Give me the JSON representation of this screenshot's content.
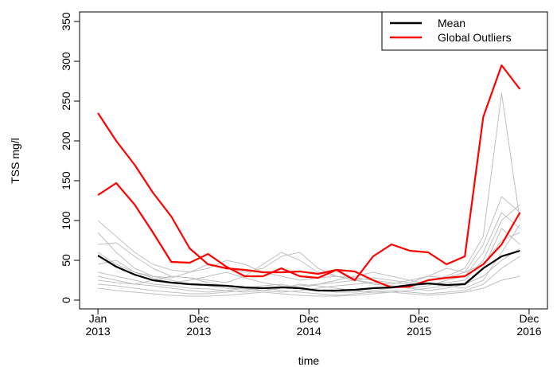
{
  "chart_data": {
    "type": "line",
    "xlabel": "time",
    "ylabel": "TSS mg/l",
    "x": [
      "2013-01",
      "2013-03",
      "2013-05",
      "2013-07",
      "2013-09",
      "2013-11",
      "2014-01",
      "2014-03",
      "2014-05",
      "2014-07",
      "2014-09",
      "2014-11",
      "2015-01",
      "2015-03",
      "2015-05",
      "2015-07",
      "2015-09",
      "2015-11",
      "2016-01",
      "2016-03",
      "2016-05",
      "2016-07",
      "2016-09",
      "2016-11"
    ],
    "xlim": [
      "2012-11",
      "2017-02"
    ],
    "xticks": [
      {
        "value": "2013-01",
        "label": "Jan\n2013"
      },
      {
        "value": "2013-12",
        "label": "Dec\n2013"
      },
      {
        "value": "2014-12",
        "label": "Dec\n2014"
      },
      {
        "value": "2015-12",
        "label": "Dec\n2015"
      },
      {
        "value": "2016-12",
        "label": "Dec\n2016"
      }
    ],
    "ylim": [
      -11,
      362
    ],
    "yticks": [
      0,
      50,
      100,
      150,
      200,
      250,
      300,
      350
    ],
    "legend": "top-right",
    "series": [
      {
        "name": "Mean",
        "color": "#000000",
        "values": [
          56,
          42,
          32,
          25,
          22,
          20,
          19,
          18,
          16,
          15,
          16,
          15,
          12,
          12,
          13,
          15,
          16,
          19,
          21,
          19,
          20,
          40,
          55,
          62
        ]
      },
      {
        "name": "Global Outliers",
        "color": "#ff0000",
        "values": [
          235,
          200,
          170,
          135,
          105,
          65,
          45,
          40,
          38,
          35,
          35,
          36,
          33,
          38,
          36,
          25,
          16,
          17,
          25,
          28,
          30,
          45,
          70,
          110
        ]
      },
      {
        "color": "#ff0000",
        "values": [
          132,
          147,
          120,
          85,
          48,
          47,
          58,
          42,
          30,
          30,
          40,
          30,
          28,
          38,
          25,
          55,
          70,
          62,
          60,
          45,
          55,
          230,
          295,
          265
        ]
      },
      {
        "color": "#c0c0c0",
        "values": [
          100,
          80,
          60,
          45,
          38,
          35,
          40,
          50,
          45,
          35,
          30,
          25,
          28,
          30,
          25,
          22,
          20,
          25,
          30,
          28,
          35,
          70,
          130,
          110
        ]
      },
      {
        "color": "#c0c0c0",
        "values": [
          70,
          72,
          55,
          40,
          30,
          28,
          25,
          22,
          30,
          45,
          60,
          50,
          35,
          30,
          28,
          25,
          22,
          20,
          25,
          30,
          40,
          80,
          260,
          100
        ]
      },
      {
        "color": "#c0c0c0",
        "values": [
          30,
          25,
          20,
          18,
          15,
          12,
          10,
          12,
          15,
          18,
          20,
          15,
          12,
          10,
          10,
          12,
          15,
          18,
          20,
          18,
          15,
          25,
          60,
          95
        ]
      },
      {
        "color": "#c0c0c0",
        "values": [
          85,
          60,
          40,
          30,
          25,
          20,
          18,
          15,
          14,
          12,
          15,
          20,
          18,
          15,
          12,
          10,
          10,
          12,
          15,
          18,
          22,
          40,
          90,
          70
        ]
      },
      {
        "color": "#c0c0c0",
        "values": [
          20,
          18,
          15,
          12,
          10,
          8,
          8,
          10,
          12,
          15,
          12,
          10,
          8,
          6,
          8,
          10,
          12,
          10,
          8,
          10,
          12,
          20,
          40,
          55
        ]
      },
      {
        "color": "#c0c0c0",
        "values": [
          45,
          50,
          35,
          28,
          22,
          25,
          30,
          35,
          28,
          22,
          18,
          15,
          20,
          25,
          30,
          35,
          30,
          25,
          20,
          22,
          25,
          50,
          100,
          120
        ]
      },
      {
        "color": "#c0c0c0",
        "values": [
          15,
          12,
          10,
          8,
          6,
          5,
          5,
          6,
          8,
          10,
          8,
          6,
          5,
          5,
          6,
          8,
          10,
          8,
          6,
          8,
          10,
          15,
          25,
          30
        ]
      },
      {
        "color": "#c0c0c0",
        "values": [
          60,
          45,
          35,
          30,
          28,
          35,
          45,
          40,
          35,
          40,
          55,
          60,
          40,
          30,
          25,
          20,
          18,
          15,
          18,
          25,
          30,
          60,
          110,
          90
        ]
      },
      {
        "color": "#c0c0c0",
        "values": [
          35,
          30,
          25,
          20,
          18,
          15,
          14,
          12,
          10,
          12,
          15,
          18,
          20,
          22,
          25,
          28,
          25,
          22,
          30,
          40,
          35,
          45,
          75,
          85
        ]
      },
      {
        "color": "#c0c0c0",
        "values": [
          25,
          22,
          20,
          25,
          30,
          28,
          22,
          18,
          15,
          12,
          10,
          12,
          15,
          18,
          20,
          22,
          18,
          15,
          12,
          15,
          20,
          30,
          50,
          65
        ]
      }
    ]
  }
}
